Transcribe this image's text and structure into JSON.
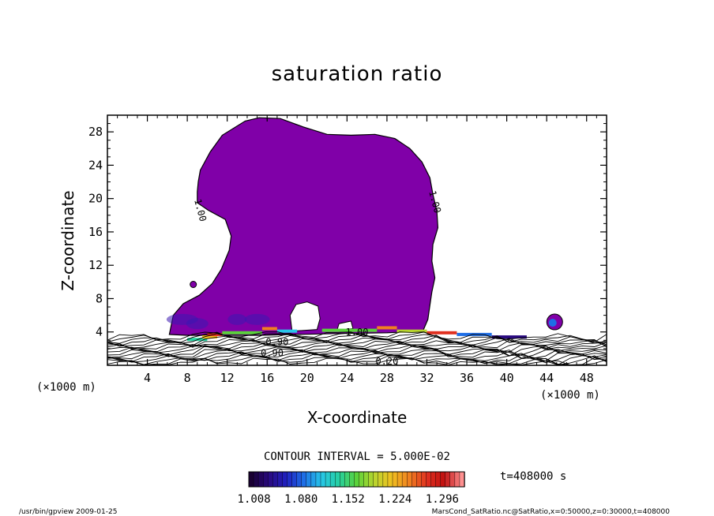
{
  "chart_data": {
    "type": "heatmap",
    "title": "saturation ratio",
    "xlabel": "X-coordinate",
    "ylabel": "Z-coordinate",
    "xunit": "(×1000 m)",
    "xlim": [
      0,
      50
    ],
    "ylim": [
      0,
      30
    ],
    "xticks": [
      "4",
      "8",
      "12",
      "16",
      "20",
      "24",
      "28",
      "32",
      "36",
      "40",
      "44",
      "48"
    ],
    "xtick_values": [
      4,
      8,
      12,
      16,
      20,
      24,
      28,
      32,
      36,
      40,
      44,
      48
    ],
    "yticks": [
      "4",
      "8",
      "12",
      "16",
      "20",
      "24",
      "28"
    ],
    "ytick_values": [
      4,
      8,
      12,
      16,
      20,
      24,
      28
    ],
    "contour_interval": "CONTOUR INTERVAL = 5.000E-02",
    "contour_labels": [
      {
        "text": "1.00",
        "x": 9.0,
        "z": 18.5
      },
      {
        "text": "1.00",
        "x": 32.5,
        "z": 19.5
      },
      {
        "text": "1.00",
        "x": 25.0,
        "z": 3.6
      },
      {
        "text": "0.90",
        "x": 17.0,
        "z": 2.4
      },
      {
        "text": "0.90",
        "x": 16.5,
        "z": 1.1
      },
      {
        "text": "0.20",
        "x": 28.0,
        "z": 0.1
      }
    ],
    "colorbar": {
      "ticks": [
        "1.008",
        "1.080",
        "1.152",
        "1.224",
        "1.296"
      ],
      "min": 1.0,
      "max": 1.33,
      "colors": [
        "#1a0033",
        "#2a0a80",
        "#2020c0",
        "#1e6ee6",
        "#27c6e8",
        "#26d0a0",
        "#5ad23a",
        "#b8d52e",
        "#f0c020",
        "#f08020",
        "#e03020",
        "#c01010",
        "#ff9090"
      ]
    },
    "fill_color": "#8000a8",
    "time_label": "t=408000 s",
    "footer_left": "/usr/bin/gpview  2009-01-25",
    "footer_right": "MarsCond_SatRatio.nc@SatRatio,x=0:50000,z=0:30000,t=408000"
  }
}
